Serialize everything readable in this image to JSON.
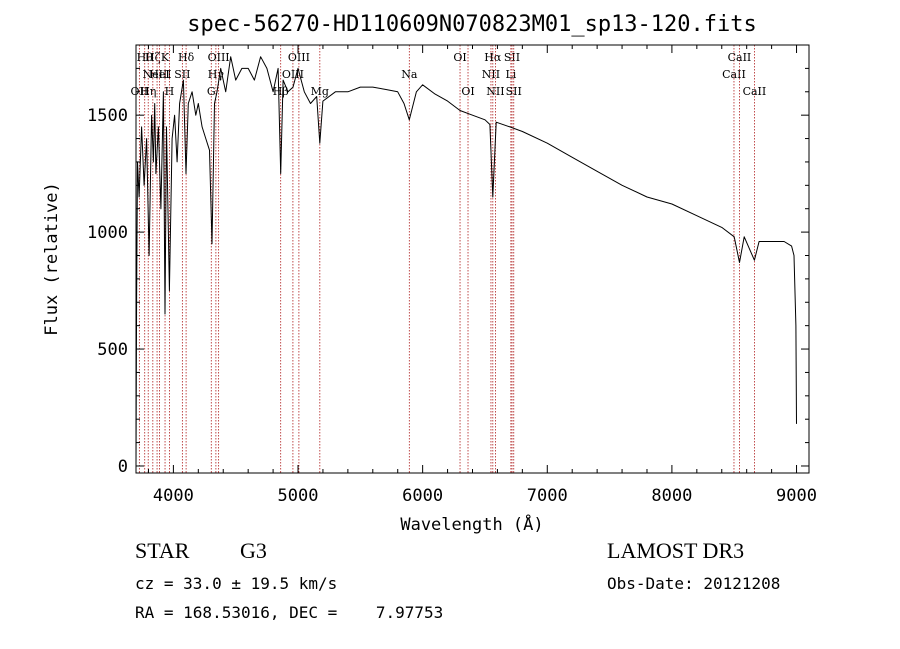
{
  "chart_data": {
    "type": "line",
    "title": "spec-56270-HD110609N070823M01_sp13-120.fits",
    "xlabel": "Wavelength (Å)",
    "ylabel": "Flux (relative)",
    "xlim": [
      3700,
      9100
    ],
    "ylim": [
      -30,
      1800
    ],
    "xticks": [
      4000,
      5000,
      6000,
      7000,
      8000,
      9000
    ],
    "yticks": [
      0,
      500,
      1000,
      1500
    ],
    "grid": false,
    "series": [
      {
        "name": "flux",
        "x": [
          3700,
          3705,
          3712,
          3725,
          3745,
          3765,
          3785,
          3805,
          3825,
          3840,
          3850,
          3860,
          3880,
          3900,
          3920,
          3933,
          3945,
          3968,
          3990,
          4010,
          4030,
          4050,
          4080,
          4101,
          4120,
          4150,
          4180,
          4200,
          4230,
          4260,
          4290,
          4310,
          4330,
          4350,
          4380,
          4420,
          4460,
          4500,
          4550,
          4600,
          4650,
          4700,
          4750,
          4800,
          4840,
          4861,
          4880,
          4920,
          4960,
          5000,
          5050,
          5100,
          5150,
          5175,
          5200,
          5300,
          5400,
          5500,
          5600,
          5700,
          5800,
          5850,
          5893,
          5950,
          6000,
          6100,
          6200,
          6300,
          6400,
          6500,
          6540,
          6563,
          6590,
          6700,
          6800,
          7000,
          7200,
          7400,
          7600,
          7800,
          8000,
          8200,
          8400,
          8500,
          8542,
          8580,
          8662,
          8700,
          8800,
          8900,
          8960,
          8980,
          8995,
          9000
        ],
        "values": [
          0,
          700,
          1300,
          1150,
          1450,
          1200,
          1400,
          900,
          1500,
          1300,
          1550,
          1250,
          1450,
          1100,
          1600,
          650,
          1450,
          750,
          1400,
          1500,
          1300,
          1550,
          1650,
          1250,
          1550,
          1600,
          1500,
          1550,
          1450,
          1400,
          1350,
          950,
          1550,
          1600,
          1700,
          1600,
          1750,
          1650,
          1700,
          1700,
          1650,
          1750,
          1700,
          1600,
          1700,
          1250,
          1650,
          1600,
          1620,
          1700,
          1600,
          1550,
          1580,
          1380,
          1560,
          1600,
          1600,
          1620,
          1620,
          1610,
          1600,
          1550,
          1480,
          1600,
          1630,
          1590,
          1560,
          1520,
          1500,
          1480,
          1460,
          1150,
          1470,
          1450,
          1430,
          1380,
          1320,
          1260,
          1200,
          1150,
          1120,
          1070,
          1020,
          980,
          870,
          980,
          880,
          960,
          960,
          960,
          940,
          900,
          600,
          180
        ]
      }
    ],
    "line_markers": [
      {
        "wl": 3727,
        "label": "OII",
        "row": 2
      },
      {
        "wl": 3770,
        "label": "Hθ",
        "row": 0
      },
      {
        "wl": 3798,
        "label": "Hη",
        "row": 2
      },
      {
        "wl": 3835,
        "label": "Hζ",
        "row": 0
      },
      {
        "wl": 3869,
        "label": "NeIII",
        "row": 1
      },
      {
        "wl": 3889,
        "label": "HeI",
        "row": 1
      },
      {
        "wl": 3933,
        "label": "K",
        "row": 0
      },
      {
        "wl": 3968,
        "label": "H",
        "row": 2
      },
      {
        "wl": 4072,
        "label": "SII",
        "row": 1
      },
      {
        "wl": 4102,
        "label": "Hδ",
        "row": 0
      },
      {
        "wl": 4304,
        "label": "G",
        "row": 2
      },
      {
        "wl": 4341,
        "label": "Hγ",
        "row": 1
      },
      {
        "wl": 4363,
        "label": "OIII",
        "row": 0
      },
      {
        "wl": 4861,
        "label": "Hβ",
        "row": 2
      },
      {
        "wl": 4959,
        "label": "OIII",
        "row": 1
      },
      {
        "wl": 5007,
        "label": "OIII",
        "row": 0
      },
      {
        "wl": 5175,
        "label": "Mg",
        "row": 2
      },
      {
        "wl": 5893,
        "label": "Na",
        "row": 1
      },
      {
        "wl": 6300,
        "label": "OI",
        "row": 0
      },
      {
        "wl": 6364,
        "label": "OI",
        "row": 2
      },
      {
        "wl": 6548,
        "label": "NII",
        "row": 1
      },
      {
        "wl": 6563,
        "label": "Hα",
        "row": 0
      },
      {
        "wl": 6584,
        "label": "NII",
        "row": 2
      },
      {
        "wl": 6708,
        "label": "Li",
        "row": 1
      },
      {
        "wl": 6717,
        "label": "SII",
        "row": 0
      },
      {
        "wl": 6731,
        "label": "SII",
        "row": 2
      },
      {
        "wl": 8498,
        "label": "CaII",
        "row": 1
      },
      {
        "wl": 8542,
        "label": "CaII",
        "row": 0
      },
      {
        "wl": 8662,
        "label": "CaII",
        "row": 2
      }
    ]
  },
  "info": {
    "object_class": "STAR",
    "subclass": "G3",
    "survey": "LAMOST DR3",
    "cz": "cz = 33.0 ± 19.5 km/s",
    "obs_date": "Obs-Date: 20121208",
    "coords": "RA = 168.53016, DEC =    7.97753"
  }
}
